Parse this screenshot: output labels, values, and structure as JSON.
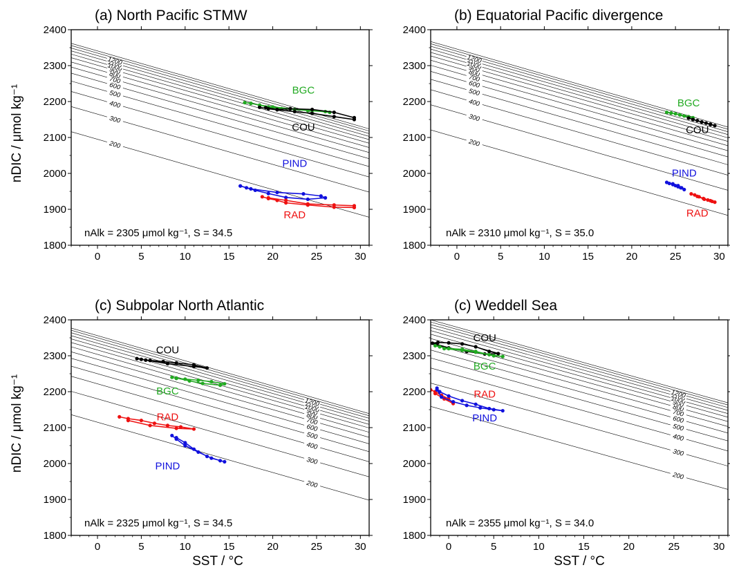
{
  "figure": {
    "ylabel": "nDIC / μmol kg⁻¹",
    "xlabel": "SST / °C"
  },
  "series_colors": {
    "COU": "#000000",
    "BGC": "#22aa22",
    "PIND": "#1111dd",
    "RAD": "#ee1111"
  },
  "chart_data": [
    {
      "type": "line",
      "title": "(a) North Pacific STMW",
      "note": "nAlk = 2305 μmol kg⁻¹, S = 34.5",
      "xlabel": "",
      "ylabel": "nDIC / μmol kg⁻¹",
      "xlim": [
        -3,
        31
      ],
      "ylim": [
        1800,
        2400
      ],
      "xticks": [
        0,
        5,
        10,
        15,
        20,
        25,
        30
      ],
      "yticks": [
        1800,
        1900,
        2000,
        2100,
        2200,
        2300,
        2400
      ],
      "contours": {
        "slope": -7.0,
        "levels": [
          {
            "label": "200",
            "y0": 2095,
            "show": true
          },
          {
            "label": "300",
            "y0": 2165,
            "show": true
          },
          {
            "label": "400",
            "y0": 2207,
            "show": true
          },
          {
            "label": "500",
            "y0": 2236,
            "show": true
          },
          {
            "label": "600",
            "y0": 2258,
            "show": true
          },
          {
            "label": "700",
            "y0": 2275,
            "show": true
          },
          {
            "label": "800",
            "y0": 2289,
            "show": true
          },
          {
            "label": "900",
            "y0": 2301,
            "show": true
          },
          {
            "label": "1000",
            "y0": 2311,
            "show": true
          },
          {
            "label": "1100",
            "y0": 2320,
            "show": true
          },
          {
            "label": "1200",
            "y0": 2328,
            "show": true
          },
          {
            "label": "",
            "y0": 2335,
            "show": false
          },
          {
            "label": "",
            "y0": 2341,
            "show": false
          }
        ],
        "label_x": 2
      },
      "series": [
        {
          "name": "BGC",
          "label_at": [
            23.5,
            2222
          ],
          "x": [
            16.8,
            17.5,
            18.5,
            19.5,
            21,
            22.5,
            24,
            26,
            26.5,
            24.5,
            22,
            20,
            18.5,
            17.5
          ],
          "y": [
            2197,
            2195,
            2190,
            2185,
            2180,
            2178,
            2175,
            2172,
            2170,
            2175,
            2180,
            2185,
            2190,
            2195
          ]
        },
        {
          "name": "COU",
          "label_at": [
            23.5,
            2119
          ],
          "x": [
            18.5,
            19.5,
            20.5,
            22.5,
            24.5,
            27,
            29.3,
            29.3,
            27,
            24.5,
            22,
            20.5,
            19.2
          ],
          "y": [
            2184,
            2180,
            2177,
            2172,
            2167,
            2158,
            2150,
            2155,
            2170,
            2178,
            2180,
            2178,
            2183
          ]
        },
        {
          "name": "PIND",
          "label_at": [
            22.5,
            2018
          ],
          "x": [
            16.3,
            17,
            18,
            19.5,
            21.5,
            24,
            26,
            25.5,
            23.5,
            20.5,
            17.5,
            16.3
          ],
          "y": [
            1965,
            1960,
            1953,
            1944,
            1933,
            1928,
            1932,
            1937,
            1943,
            1947,
            1957,
            1965
          ]
        },
        {
          "name": "RAD",
          "label_at": [
            22.5,
            1875
          ],
          "x": [
            18.8,
            19.5,
            20.5,
            21.5,
            24,
            27,
            29.3,
            29.3,
            27,
            24,
            21.5,
            19.5
          ],
          "y": [
            1935,
            1930,
            1925,
            1918,
            1912,
            1906,
            1905,
            1910,
            1912,
            1915,
            1925,
            1932
          ]
        }
      ]
    },
    {
      "type": "line",
      "title": "(b) Equatorial Pacific divergence",
      "note": "nAlk = 2310 μmol kg⁻¹, S = 35.0",
      "xlabel": "",
      "ylabel": "",
      "xlim": [
        -3,
        31
      ],
      "ylim": [
        1800,
        2400
      ],
      "xticks": [
        0,
        5,
        10,
        15,
        20,
        25,
        30
      ],
      "yticks": [
        1800,
        1900,
        2000,
        2100,
        2200,
        2300,
        2400
      ],
      "contours": {
        "slope": -7.0,
        "levels": [
          {
            "label": "200",
            "y0": 2100,
            "show": true
          },
          {
            "label": "300",
            "y0": 2170,
            "show": true
          },
          {
            "label": "400",
            "y0": 2212,
            "show": true
          },
          {
            "label": "500",
            "y0": 2241,
            "show": true
          },
          {
            "label": "600",
            "y0": 2263,
            "show": true
          },
          {
            "label": "700",
            "y0": 2280,
            "show": true
          },
          {
            "label": "800",
            "y0": 2294,
            "show": true
          },
          {
            "label": "900",
            "y0": 2306,
            "show": true
          },
          {
            "label": "1000",
            "y0": 2316,
            "show": true
          },
          {
            "label": "1100",
            "y0": 2325,
            "show": true
          },
          {
            "label": "1200",
            "y0": 2333,
            "show": true
          },
          {
            "label": "",
            "y0": 2340,
            "show": false
          },
          {
            "label": "",
            "y0": 2346,
            "show": false
          }
        ],
        "label_x": 2
      },
      "series": [
        {
          "name": "BGC",
          "label_at": [
            26.5,
            2187
          ],
          "x": [
            24,
            24.5,
            25,
            25.5,
            26,
            26.5,
            27,
            26.5,
            25.5,
            24.5
          ],
          "y": [
            2170,
            2168,
            2166,
            2163,
            2160,
            2157,
            2155,
            2158,
            2163,
            2168
          ]
        },
        {
          "name": "COU",
          "label_at": [
            27.5,
            2112
          ],
          "x": [
            26.5,
            27,
            27.5,
            28,
            28.5,
            29,
            29.5,
            29,
            28,
            27
          ],
          "y": [
            2154,
            2150,
            2147,
            2143,
            2140,
            2137,
            2133,
            2136,
            2143,
            2150
          ]
        },
        {
          "name": "PIND",
          "label_at": [
            26,
            1991
          ],
          "x": [
            24,
            24.3,
            24.7,
            25,
            25.3,
            25.6,
            26,
            25.7,
            25.3,
            24.7
          ],
          "y": [
            1975,
            1972,
            1969,
            1966,
            1963,
            1960,
            1955,
            1960,
            1966,
            1971
          ]
        },
        {
          "name": "RAD",
          "label_at": [
            27.5,
            1880
          ],
          "x": [
            26.8,
            27.2,
            27.7,
            28.2,
            28.7,
            29.2,
            29.5,
            29,
            28.3,
            27.5
          ],
          "y": [
            1943,
            1940,
            1935,
            1930,
            1926,
            1922,
            1920,
            1924,
            1928,
            1936
          ]
        }
      ]
    },
    {
      "type": "line",
      "title": "(c) Subpolar North Atlantic",
      "note": "nAlk = 2325 μmol kg⁻¹, S = 34.5",
      "xlabel": "SST / °C",
      "ylabel": "nDIC / μmol kg⁻¹",
      "xlim": [
        -3,
        31
      ],
      "ylim": [
        1800,
        2400
      ],
      "xticks": [
        0,
        5,
        10,
        15,
        20,
        25,
        30
      ],
      "yticks": [
        1800,
        1900,
        2000,
        2100,
        2200,
        2300,
        2400
      ],
      "contours": {
        "slope": -7.0,
        "levels": [
          {
            "label": "200",
            "y0": 2115,
            "show": true
          },
          {
            "label": "300",
            "y0": 2180,
            "show": true
          },
          {
            "label": "400",
            "y0": 2222,
            "show": true
          },
          {
            "label": "500",
            "y0": 2250,
            "show": true
          },
          {
            "label": "600",
            "y0": 2272,
            "show": true
          },
          {
            "label": "700",
            "y0": 2290,
            "show": true
          },
          {
            "label": "800",
            "y0": 2304,
            "show": true
          },
          {
            "label": "900",
            "y0": 2316,
            "show": true
          },
          {
            "label": "1000",
            "y0": 2326,
            "show": true
          },
          {
            "label": "1100",
            "y0": 2335,
            "show": true
          },
          {
            "label": "1200",
            "y0": 2343,
            "show": true
          },
          {
            "label": "",
            "y0": 2350,
            "show": false
          },
          {
            "label": "",
            "y0": 2356,
            "show": false
          }
        ],
        "label_x": 24.5
      },
      "series": [
        {
          "name": "COU",
          "label_at": [
            8,
            2307
          ],
          "x": [
            4.5,
            5,
            6,
            7.5,
            9,
            11,
            12.5,
            11,
            8,
            5.5
          ],
          "y": [
            2292,
            2290,
            2287,
            2284,
            2280,
            2275,
            2266,
            2270,
            2278,
            2288
          ]
        },
        {
          "name": "BGC",
          "label_at": [
            8,
            2192
          ],
          "x": [
            8.5,
            9,
            10,
            11.5,
            13,
            14.5,
            14,
            12,
            10.5,
            9
          ],
          "y": [
            2240,
            2237,
            2235,
            2232,
            2228,
            2222,
            2218,
            2223,
            2230,
            2238
          ]
        },
        {
          "name": "RAD",
          "label_at": [
            8,
            2120
          ],
          "x": [
            2.5,
            3.5,
            5,
            6.5,
            8,
            9.5,
            11,
            9,
            6,
            3.5
          ],
          "y": [
            2130,
            2125,
            2120,
            2112,
            2106,
            2102,
            2096,
            2098,
            2106,
            2120
          ]
        },
        {
          "name": "PIND",
          "label_at": [
            8,
            1984
          ],
          "x": [
            8.5,
            9,
            10,
            11.5,
            13,
            14.5,
            14,
            12.5,
            11,
            10,
            9
          ],
          "y": [
            2078,
            2068,
            2050,
            2032,
            2015,
            2005,
            2008,
            2020,
            2040,
            2058,
            2072
          ]
        }
      ]
    },
    {
      "type": "line",
      "title": "(c) Weddell Sea",
      "note": "nAlk = 2355 μmol kg⁻¹, S = 34.0",
      "xlabel": "SST / °C",
      "ylabel": "",
      "xlim": [
        -2,
        31
      ],
      "ylim": [
        1800,
        2400
      ],
      "xticks": [
        0,
        5,
        10,
        15,
        20,
        25,
        30
      ],
      "yticks": [
        1800,
        1900,
        2000,
        2100,
        2200,
        2300,
        2400
      ],
      "contours": {
        "slope": -7.0,
        "levels": [
          {
            "label": "200",
            "y0": 2145,
            "show": true
          },
          {
            "label": "300",
            "y0": 2210,
            "show": true
          },
          {
            "label": "400",
            "y0": 2252,
            "show": true
          },
          {
            "label": "500",
            "y0": 2280,
            "show": true
          },
          {
            "label": "600",
            "y0": 2302,
            "show": true
          },
          {
            "label": "700",
            "y0": 2320,
            "show": true
          },
          {
            "label": "800",
            "y0": 2334,
            "show": true
          },
          {
            "label": "900",
            "y0": 2346,
            "show": true
          },
          {
            "label": "1000",
            "y0": 2356,
            "show": true
          },
          {
            "label": "1100",
            "y0": 2365,
            "show": true
          },
          {
            "label": "1200",
            "y0": 2373,
            "show": true
          },
          {
            "label": "",
            "y0": 2380,
            "show": false
          },
          {
            "label": "",
            "y0": 2386,
            "show": false
          }
        ],
        "label_x": 25.5
      },
      "series": [
        {
          "name": "COU",
          "label_at": [
            4,
            2340
          ],
          "x": [
            -1.8,
            -1.2,
            0,
            1.5,
            3,
            4.5,
            5.5,
            4,
            2,
            0,
            -1.5
          ],
          "y": [
            2335,
            2337,
            2336,
            2333,
            2325,
            2312,
            2306,
            2305,
            2312,
            2322,
            2333
          ]
        },
        {
          "name": "BGC",
          "label_at": [
            4,
            2262
          ],
          "x": [
            -1.5,
            -1,
            0,
            1.5,
            3,
            4.5,
            6,
            5,
            3,
            1.5,
            -0.5
          ],
          "y": [
            2328,
            2325,
            2320,
            2318,
            2312,
            2303,
            2298,
            2300,
            2310,
            2315,
            2320
          ]
        },
        {
          "name": "RAD",
          "label_at": [
            4,
            2184
          ],
          "x": [
            -2,
            -1.5,
            -0.8,
            0,
            0.5,
            -0.5,
            -1.5
          ],
          "y": [
            2205,
            2200,
            2190,
            2180,
            2167,
            2180,
            2195
          ]
        },
        {
          "name": "PIND",
          "label_at": [
            4,
            2117
          ],
          "x": [
            -1.3,
            -1,
            0,
            1.5,
            3,
            4.5,
            6,
            5,
            3.5,
            2,
            0.5,
            -0.8,
            -1.3
          ],
          "y": [
            2210,
            2200,
            2188,
            2175,
            2165,
            2153,
            2147,
            2150,
            2155,
            2162,
            2172,
            2185,
            2205
          ]
        }
      ]
    }
  ]
}
